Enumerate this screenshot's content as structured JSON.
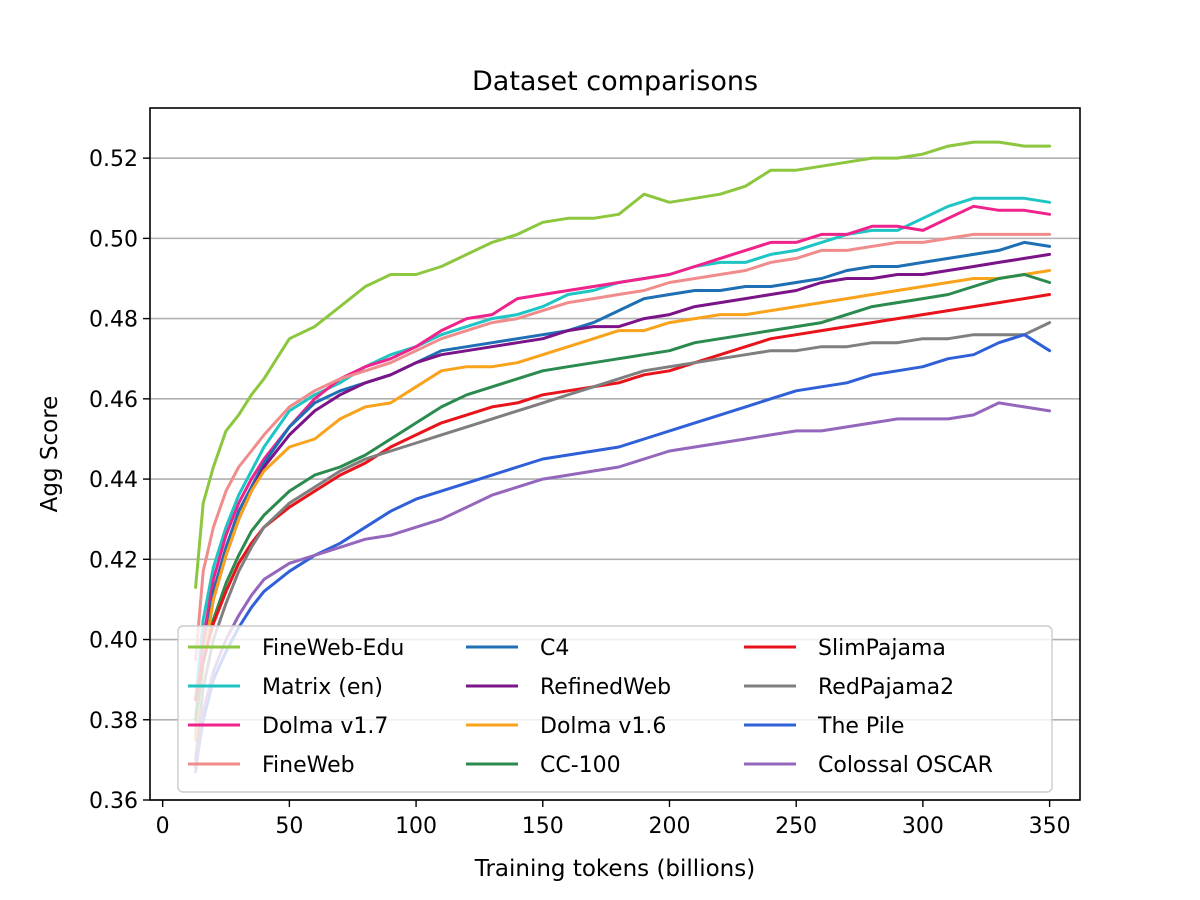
{
  "chart_data": {
    "type": "line",
    "title": "Dataset comparisons",
    "xlabel": "Training tokens (billions)",
    "ylabel": "Agg Score",
    "xlim": [
      -5,
      362
    ],
    "ylim": [
      0.36,
      0.5325
    ],
    "xticks": [
      0,
      50,
      100,
      150,
      200,
      250,
      300,
      350
    ],
    "yticks": [
      0.36,
      0.38,
      0.4,
      0.42,
      0.44,
      0.46,
      0.48,
      0.5,
      0.52
    ],
    "grid": "horizontal",
    "legend_position": "lower-center",
    "series": [
      {
        "name": "FineWeb-Edu",
        "color": "#8dc63f",
        "x": [
          13,
          16,
          20,
          25,
          30,
          35,
          40,
          45,
          50,
          60,
          70,
          80,
          90,
          100,
          110,
          120,
          130,
          140,
          150,
          160,
          170,
          180,
          190,
          200,
          210,
          220,
          230,
          240,
          250,
          260,
          270,
          280,
          290,
          300,
          310,
          320,
          330,
          340,
          350
        ],
        "y": [
          0.413,
          0.434,
          0.443,
          0.452,
          0.456,
          0.461,
          0.465,
          0.47,
          0.475,
          0.478,
          0.483,
          0.488,
          0.491,
          0.491,
          0.493,
          0.496,
          0.499,
          0.501,
          0.504,
          0.505,
          0.505,
          0.506,
          0.511,
          0.509,
          0.51,
          0.511,
          0.513,
          0.517,
          0.517,
          0.518,
          0.519,
          0.52,
          0.52,
          0.521,
          0.523,
          0.524,
          0.524,
          0.523,
          0.523
        ]
      },
      {
        "name": "Matrix (en)",
        "color": "#1fc5c5",
        "x": [
          13,
          16,
          20,
          25,
          30,
          35,
          40,
          50,
          60,
          70,
          80,
          90,
          100,
          110,
          120,
          130,
          140,
          150,
          160,
          170,
          180,
          190,
          200,
          210,
          220,
          230,
          240,
          250,
          260,
          270,
          280,
          290,
          300,
          310,
          320,
          330,
          340,
          350
        ],
        "y": [
          0.385,
          0.405,
          0.418,
          0.428,
          0.436,
          0.442,
          0.448,
          0.457,
          0.461,
          0.464,
          0.468,
          0.471,
          0.473,
          0.476,
          0.478,
          0.48,
          0.481,
          0.483,
          0.486,
          0.487,
          0.489,
          0.49,
          0.491,
          0.493,
          0.494,
          0.494,
          0.496,
          0.497,
          0.499,
          0.501,
          0.502,
          0.502,
          0.505,
          0.508,
          0.51,
          0.51,
          0.51,
          0.509
        ]
      },
      {
        "name": "Dolma v1.7",
        "color": "#f0238c",
        "x": [
          13,
          16,
          20,
          25,
          30,
          35,
          40,
          50,
          60,
          70,
          80,
          90,
          100,
          110,
          120,
          130,
          140,
          150,
          160,
          170,
          180,
          190,
          200,
          210,
          220,
          230,
          240,
          250,
          260,
          270,
          280,
          290,
          300,
          310,
          320,
          330,
          340,
          350
        ],
        "y": [
          0.38,
          0.4,
          0.415,
          0.426,
          0.434,
          0.44,
          0.445,
          0.453,
          0.46,
          0.465,
          0.468,
          0.47,
          0.473,
          0.477,
          0.48,
          0.481,
          0.485,
          0.486,
          0.487,
          0.488,
          0.489,
          0.49,
          0.491,
          0.493,
          0.495,
          0.497,
          0.499,
          0.499,
          0.501,
          0.501,
          0.503,
          0.503,
          0.502,
          0.505,
          0.508,
          0.507,
          0.507,
          0.506
        ]
      },
      {
        "name": "FineWeb",
        "color": "#f08c8c",
        "x": [
          13,
          16,
          20,
          25,
          30,
          35,
          40,
          50,
          60,
          70,
          80,
          90,
          100,
          110,
          120,
          130,
          140,
          150,
          160,
          170,
          180,
          190,
          200,
          210,
          220,
          230,
          240,
          250,
          260,
          270,
          280,
          290,
          300,
          310,
          320,
          330,
          340,
          350
        ],
        "y": [
          0.395,
          0.417,
          0.428,
          0.437,
          0.443,
          0.447,
          0.451,
          0.458,
          0.462,
          0.465,
          0.467,
          0.469,
          0.472,
          0.475,
          0.477,
          0.479,
          0.48,
          0.482,
          0.484,
          0.485,
          0.486,
          0.487,
          0.489,
          0.49,
          0.491,
          0.492,
          0.494,
          0.495,
          0.497,
          0.497,
          0.498,
          0.499,
          0.499,
          0.5,
          0.501,
          0.501,
          0.501,
          0.501
        ]
      },
      {
        "name": "C4",
        "color": "#1f6fb4",
        "x": [
          13,
          16,
          20,
          25,
          30,
          35,
          40,
          50,
          60,
          70,
          80,
          90,
          100,
          110,
          120,
          130,
          140,
          150,
          160,
          170,
          180,
          190,
          200,
          210,
          220,
          230,
          240,
          250,
          260,
          270,
          280,
          290,
          300,
          310,
          320,
          330,
          340,
          350
        ],
        "y": [
          0.376,
          0.396,
          0.412,
          0.423,
          0.432,
          0.438,
          0.444,
          0.453,
          0.459,
          0.462,
          0.464,
          0.466,
          0.469,
          0.472,
          0.473,
          0.474,
          0.475,
          0.476,
          0.477,
          0.479,
          0.482,
          0.485,
          0.486,
          0.487,
          0.487,
          0.488,
          0.488,
          0.489,
          0.49,
          0.492,
          0.493,
          0.493,
          0.494,
          0.495,
          0.496,
          0.497,
          0.499,
          0.498
        ]
      },
      {
        "name": "RefinedWeb",
        "color": "#7b1488",
        "x": [
          13,
          16,
          20,
          25,
          30,
          35,
          40,
          50,
          60,
          70,
          80,
          90,
          100,
          110,
          120,
          130,
          140,
          150,
          160,
          170,
          180,
          190,
          200,
          210,
          220,
          230,
          240,
          250,
          260,
          270,
          280,
          290,
          300,
          310,
          320,
          330,
          340,
          350
        ],
        "y": [
          0.375,
          0.395,
          0.41,
          0.421,
          0.43,
          0.437,
          0.443,
          0.451,
          0.457,
          0.461,
          0.464,
          0.466,
          0.469,
          0.471,
          0.472,
          0.473,
          0.474,
          0.475,
          0.477,
          0.478,
          0.478,
          0.48,
          0.481,
          0.483,
          0.484,
          0.485,
          0.486,
          0.487,
          0.489,
          0.49,
          0.49,
          0.491,
          0.491,
          0.492,
          0.493,
          0.494,
          0.495,
          0.496
        ]
      },
      {
        "name": "Dolma v1.6",
        "color": "#f8a31b",
        "x": [
          13,
          16,
          20,
          25,
          30,
          35,
          40,
          50,
          60,
          70,
          80,
          90,
          100,
          110,
          120,
          130,
          140,
          150,
          160,
          170,
          180,
          190,
          200,
          210,
          220,
          230,
          240,
          250,
          260,
          270,
          280,
          290,
          300,
          310,
          320,
          330,
          340,
          350
        ],
        "y": [
          0.375,
          0.395,
          0.41,
          0.421,
          0.43,
          0.437,
          0.442,
          0.448,
          0.45,
          0.455,
          0.458,
          0.459,
          0.463,
          0.467,
          0.468,
          0.468,
          0.469,
          0.471,
          0.473,
          0.475,
          0.477,
          0.477,
          0.479,
          0.48,
          0.481,
          0.481,
          0.482,
          0.483,
          0.484,
          0.485,
          0.486,
          0.487,
          0.488,
          0.489,
          0.49,
          0.49,
          0.491,
          0.492
        ]
      },
      {
        "name": "CC-100",
        "color": "#2b8a4e",
        "x": [
          13,
          16,
          20,
          25,
          30,
          35,
          40,
          50,
          60,
          70,
          80,
          90,
          100,
          110,
          120,
          130,
          140,
          150,
          160,
          170,
          180,
          190,
          200,
          210,
          220,
          230,
          240,
          250,
          260,
          270,
          280,
          290,
          300,
          310,
          320,
          330,
          340,
          350
        ],
        "y": [
          0.38,
          0.394,
          0.405,
          0.414,
          0.421,
          0.427,
          0.431,
          0.437,
          0.441,
          0.443,
          0.446,
          0.45,
          0.454,
          0.458,
          0.461,
          0.463,
          0.465,
          0.467,
          0.468,
          0.469,
          0.47,
          0.471,
          0.472,
          0.474,
          0.475,
          0.476,
          0.477,
          0.478,
          0.479,
          0.481,
          0.483,
          0.484,
          0.485,
          0.486,
          0.488,
          0.49,
          0.491,
          0.489
        ]
      },
      {
        "name": "SlimPajama",
        "color": "#e8131b",
        "x": [
          13,
          16,
          20,
          25,
          30,
          35,
          40,
          50,
          60,
          70,
          80,
          90,
          100,
          110,
          120,
          130,
          140,
          150,
          160,
          170,
          180,
          190,
          200,
          210,
          220,
          230,
          240,
          250,
          260,
          270,
          280,
          290,
          300,
          310,
          320,
          330,
          340,
          350
        ],
        "y": [
          0.385,
          0.395,
          0.404,
          0.412,
          0.419,
          0.424,
          0.428,
          0.433,
          0.437,
          0.441,
          0.444,
          0.448,
          0.451,
          0.454,
          0.456,
          0.458,
          0.459,
          0.461,
          0.462,
          0.463,
          0.464,
          0.466,
          0.467,
          0.469,
          0.471,
          0.473,
          0.475,
          0.476,
          0.477,
          0.478,
          0.479,
          0.48,
          0.481,
          0.482,
          0.483,
          0.484,
          0.485,
          0.486
        ]
      },
      {
        "name": "RedPajama2",
        "color": "#7f7f7f",
        "x": [
          13,
          16,
          20,
          25,
          30,
          35,
          40,
          50,
          60,
          70,
          80,
          90,
          100,
          110,
          120,
          130,
          140,
          150,
          160,
          170,
          180,
          190,
          200,
          210,
          220,
          230,
          240,
          250,
          260,
          270,
          280,
          290,
          300,
          310,
          320,
          330,
          340,
          350
        ],
        "y": [
          0.37,
          0.388,
          0.4,
          0.409,
          0.417,
          0.423,
          0.428,
          0.434,
          0.438,
          0.442,
          0.445,
          0.447,
          0.449,
          0.451,
          0.453,
          0.455,
          0.457,
          0.459,
          0.461,
          0.463,
          0.465,
          0.467,
          0.468,
          0.469,
          0.47,
          0.471,
          0.472,
          0.472,
          0.473,
          0.473,
          0.474,
          0.474,
          0.475,
          0.475,
          0.476,
          0.476,
          0.476,
          0.479
        ]
      },
      {
        "name": "The Pile",
        "color": "#3060d8",
        "x": [
          13,
          16,
          20,
          25,
          30,
          35,
          40,
          50,
          60,
          70,
          80,
          90,
          100,
          110,
          120,
          130,
          140,
          150,
          160,
          170,
          180,
          190,
          200,
          210,
          220,
          230,
          240,
          250,
          260,
          270,
          280,
          290,
          300,
          310,
          320,
          330,
          340,
          350
        ],
        "y": [
          0.368,
          0.38,
          0.39,
          0.397,
          0.403,
          0.408,
          0.412,
          0.417,
          0.421,
          0.424,
          0.428,
          0.432,
          0.435,
          0.437,
          0.439,
          0.441,
          0.443,
          0.445,
          0.446,
          0.447,
          0.448,
          0.45,
          0.452,
          0.454,
          0.456,
          0.458,
          0.46,
          0.462,
          0.463,
          0.464,
          0.466,
          0.467,
          0.468,
          0.47,
          0.471,
          0.474,
          0.476,
          0.472
        ]
      },
      {
        "name": "Colossal OSCAR",
        "color": "#9467bd",
        "x": [
          13,
          16,
          20,
          25,
          30,
          35,
          40,
          50,
          60,
          70,
          80,
          90,
          100,
          110,
          120,
          130,
          140,
          150,
          160,
          170,
          180,
          190,
          200,
          210,
          220,
          230,
          240,
          250,
          260,
          270,
          280,
          290,
          300,
          310,
          320,
          330,
          340,
          350
        ],
        "y": [
          0.367,
          0.382,
          0.392,
          0.4,
          0.406,
          0.411,
          0.415,
          0.419,
          0.421,
          0.423,
          0.425,
          0.426,
          0.428,
          0.43,
          0.433,
          0.436,
          0.438,
          0.44,
          0.441,
          0.442,
          0.443,
          0.445,
          0.447,
          0.448,
          0.449,
          0.45,
          0.451,
          0.452,
          0.452,
          0.453,
          0.454,
          0.455,
          0.455,
          0.455,
          0.456,
          0.459,
          0.458,
          0.457
        ]
      }
    ]
  }
}
